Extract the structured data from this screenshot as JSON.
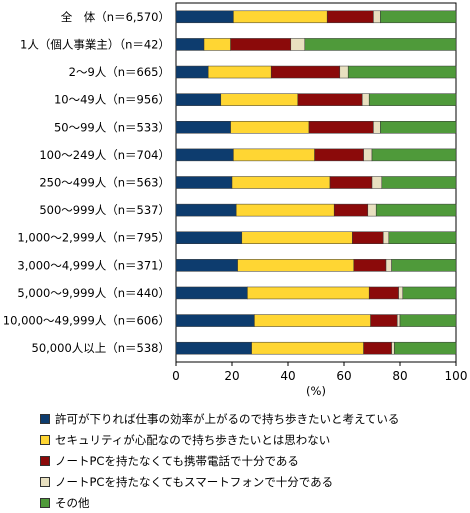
{
  "chart_data": {
    "type": "bar",
    "orientation": "horizontal",
    "stacked": true,
    "categories": [
      "全　体（n＝6,570）",
      "1人（個人事業主）（n＝42）",
      "2～9人（n＝665）",
      "10～49人（n＝956）",
      "50～99人（n＝533）",
      "100～249人（n＝704）",
      "250～499人（n＝563）",
      "500～999人（n＝537）",
      "1,000～2,999人（n＝795）",
      "3,000～4,999人（n＝371）",
      "5,000～9,999人（n＝440）",
      "10,000～49,999人（n＝606）",
      "50,000人以上（n＝538）"
    ],
    "series": [
      {
        "name": "許可が下りれば仕事の効率が上がるので持ち歩きたいと考えている",
        "color": "#0d3c6e",
        "values": [
          20.5,
          10.0,
          11.5,
          16.0,
          19.5,
          20.5,
          20.0,
          21.5,
          23.5,
          22.0,
          25.5,
          28.0,
          27.0
        ]
      },
      {
        "name": "セキュリティが心配なので持ち歩きたいとは思わない",
        "color": "#ffd633",
        "values": [
          33.5,
          9.5,
          22.5,
          27.5,
          28.0,
          29.0,
          35.0,
          35.0,
          39.5,
          41.5,
          43.5,
          41.5,
          40.0
        ]
      },
      {
        "name": "ノートPCを持たなくても携帯電話で十分である",
        "color": "#8b0a0a",
        "values": [
          16.5,
          21.5,
          24.5,
          23.0,
          23.0,
          17.5,
          15.0,
          12.0,
          11.0,
          11.5,
          10.5,
          9.5,
          10.0
        ]
      },
      {
        "name": "ノートPCを持たなくてもスマートフォンで十分である",
        "color": "#e8e0c0",
        "values": [
          2.5,
          5.0,
          3.0,
          2.5,
          2.5,
          3.0,
          3.5,
          3.0,
          2.0,
          2.0,
          1.5,
          1.0,
          1.0
        ]
      },
      {
        "name": "その他",
        "color": "#4f9a3a",
        "values": [
          27.0,
          54.0,
          38.5,
          31.0,
          27.0,
          30.0,
          26.5,
          28.5,
          24.0,
          23.0,
          19.0,
          20.0,
          22.0
        ]
      }
    ],
    "xlim": [
      0,
      100
    ],
    "xticks": [
      0,
      20,
      40,
      60,
      80,
      100
    ],
    "xlabel": "(%)",
    "grid": false,
    "legend_position": "bottom"
  }
}
